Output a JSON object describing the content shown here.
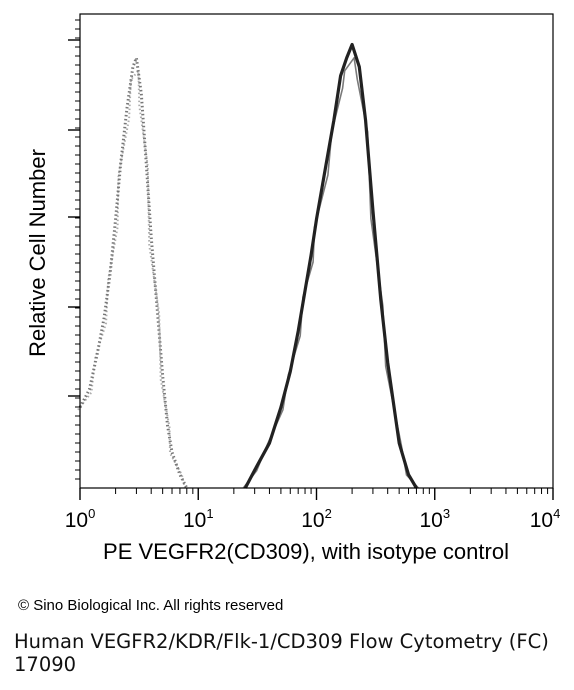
{
  "chart_data": {
    "type": "line",
    "xscale": "log",
    "xlim": [
      1,
      10000
    ],
    "xticks": [
      {
        "base": "10",
        "exp": "0"
      },
      {
        "base": "10",
        "exp": "1"
      },
      {
        "base": "10",
        "exp": "2"
      },
      {
        "base": "10",
        "exp": "3"
      },
      {
        "base": "10",
        "exp": "4"
      }
    ],
    "xlabel": "PE VEGFR2(CD309), with isotype control",
    "ylabel": "Relative Cell Number",
    "ylim": [
      0,
      100
    ],
    "grid": false,
    "series": [
      {
        "style": "dotted",
        "color": "#777777",
        "x": [
          1.0,
          1.2,
          1.4,
          1.6,
          1.8,
          2.0,
          2.2,
          2.5,
          2.8,
          3.0,
          3.3,
          3.6,
          4.0,
          4.5,
          5.0,
          5.5,
          6.0,
          7.0,
          8.0
        ],
        "y": [
          18,
          22,
          30,
          38,
          48,
          60,
          72,
          85,
          94,
          96,
          88,
          74,
          56,
          40,
          25,
          14,
          8,
          3,
          0
        ]
      },
      {
        "style": "solid",
        "color": "#222222",
        "x": [
          25,
          30,
          40,
          50,
          60,
          70,
          80,
          90,
          100,
          120,
          140,
          160,
          180,
          200,
          230,
          260,
          300,
          350,
          400,
          500,
          600,
          700
        ],
        "y": [
          0,
          4,
          10,
          18,
          26,
          35,
          44,
          52,
          60,
          72,
          82,
          92,
          96,
          99,
          94,
          82,
          62,
          42,
          28,
          10,
          3,
          0
        ]
      }
    ]
  },
  "footer": {
    "copyright": "© Sino Biological Inc. All rights reserved",
    "caption_line1": "Human VEGFR2/KDR/Flk-1/CD309 Flow Cytometry (FC)",
    "caption_line2": "17090"
  }
}
